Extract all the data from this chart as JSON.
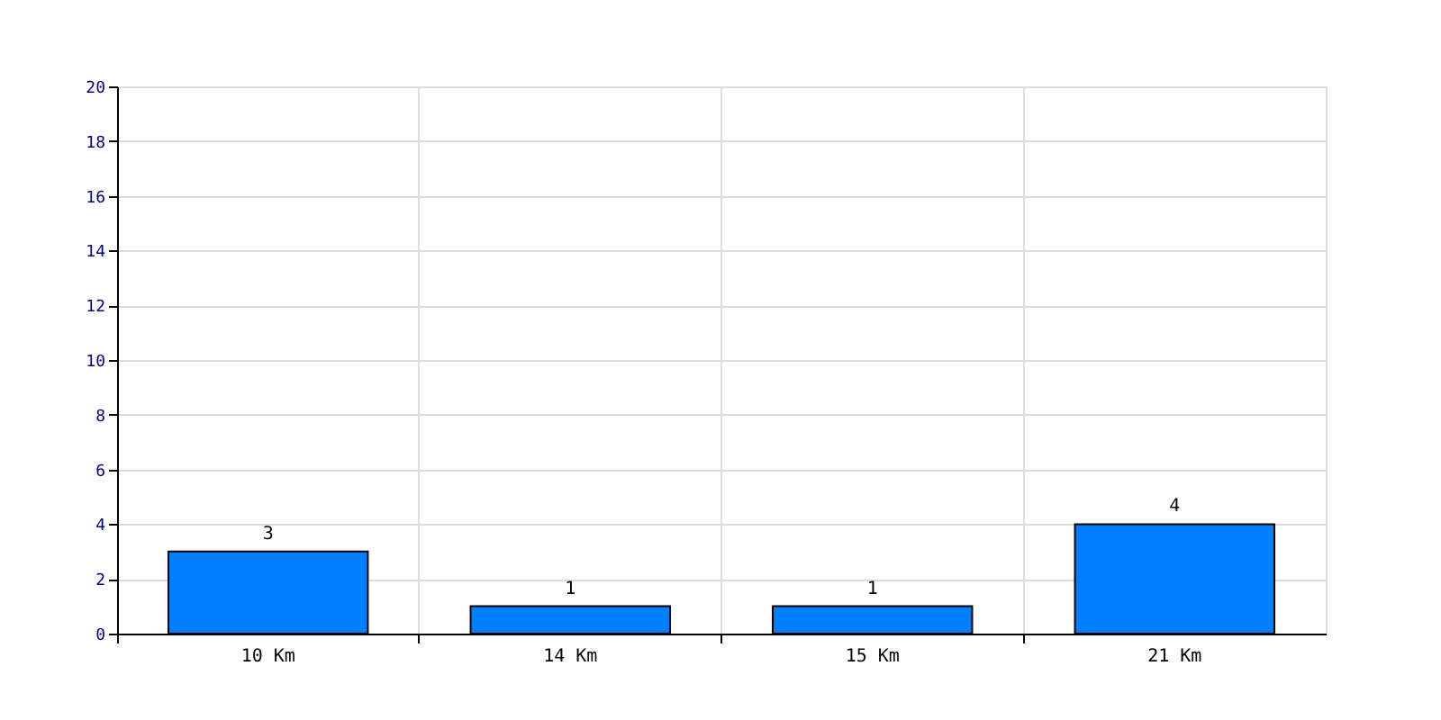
{
  "chart_data": {
    "type": "bar",
    "categories": [
      "10 Km",
      "14 Km",
      "15 Km",
      "21 Km"
    ],
    "values": [
      3,
      1,
      1,
      4
    ],
    "color": "#0080ff",
    "ylim": [
      0,
      20
    ],
    "yticks": [
      0,
      2,
      4,
      6,
      8,
      10,
      12,
      14,
      16,
      18,
      20
    ],
    "grid": true,
    "data_labels": true
  }
}
